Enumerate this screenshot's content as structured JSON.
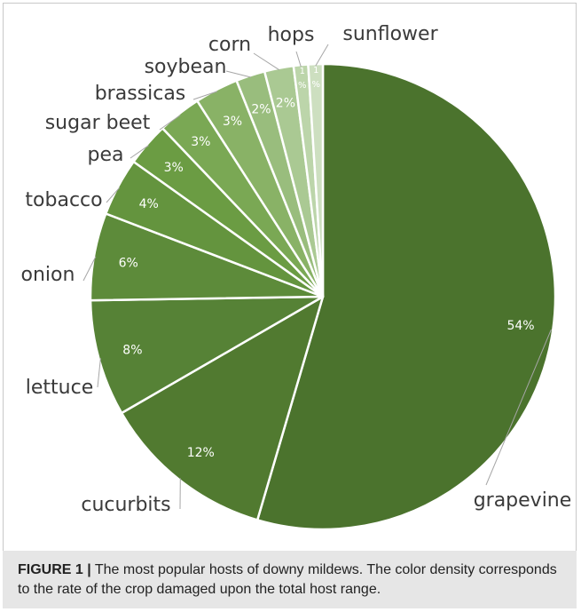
{
  "chart_data": {
    "type": "pie",
    "title": "",
    "start_angle_deg": 0,
    "direction": "clockwise",
    "colors": {
      "grapevine": "#4b732d",
      "cucurbits": "#517a30",
      "lettuce": "#568236",
      "onion": "#5d8b3a",
      "tobacco": "#64943e",
      "pea": "#6b9c43",
      "sugar beet": "#7aa854",
      "brassicas": "#89b266",
      "soybean": "#99bd7d",
      "corn": "#aac993",
      "hops": "#bcd5aa",
      "sunflower": "#cddfc0"
    },
    "slices": [
      {
        "label": "grapevine",
        "value": 54,
        "value_label": "54%"
      },
      {
        "label": "cucurbits",
        "value": 12,
        "value_label": "12%"
      },
      {
        "label": "lettuce",
        "value": 8,
        "value_label": "8%"
      },
      {
        "label": "onion",
        "value": 6,
        "value_label": "6%"
      },
      {
        "label": "tobacco",
        "value": 4,
        "value_label": "4%"
      },
      {
        "label": "pea",
        "value": 3,
        "value_label": "3%"
      },
      {
        "label": "sugar beet",
        "value": 3,
        "value_label": "3%"
      },
      {
        "label": "brassicas",
        "value": 3,
        "value_label": "3%"
      },
      {
        "label": "soybean",
        "value": 2,
        "value_label": "2%"
      },
      {
        "label": "corn",
        "value": 2,
        "value_label": "2%"
      },
      {
        "label": "hops",
        "value": 1,
        "value_label": "1%"
      },
      {
        "label": "sunflower",
        "value": 1,
        "value_label": "1%"
      }
    ]
  },
  "caption": {
    "lead": "FIGURE 1 |",
    "text": " The most popular hosts of downy mildews. The color density corresponds to the rate of the crop damaged upon the total host range."
  }
}
